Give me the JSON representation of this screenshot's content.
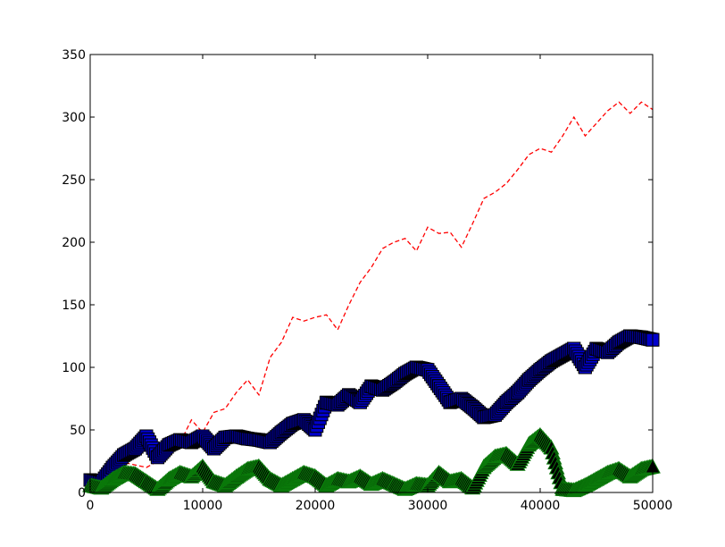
{
  "chart_data": {
    "type": "line",
    "title": "",
    "xlabel": "",
    "ylabel": "",
    "xlim": [
      0,
      50000
    ],
    "ylim": [
      0,
      350
    ],
    "xticks": [
      0,
      10000,
      20000,
      30000,
      40000,
      50000
    ],
    "yticks": [
      0,
      50,
      100,
      150,
      200,
      250,
      300,
      350
    ],
    "grid": false,
    "legend": "none",
    "series": [
      {
        "style": "dashed-line",
        "color": "#ff0000",
        "x": [
          0,
          1000,
          2000,
          3000,
          4000,
          5000,
          6000,
          7000,
          8000,
          9000,
          10000,
          11000,
          12000,
          13000,
          14000,
          15000,
          16000,
          17000,
          18000,
          19000,
          20000,
          21000,
          22000,
          23000,
          24000,
          25000,
          26000,
          27000,
          28000,
          29000,
          30000,
          31000,
          32000,
          33000,
          34000,
          35000,
          36000,
          37000,
          38000,
          39000,
          40000,
          41000,
          42000,
          43000,
          44000,
          45000,
          46000,
          47000,
          48000,
          49000,
          50000
        ],
        "y": [
          5,
          10,
          18,
          24,
          22,
          20,
          25,
          30,
          40,
          58,
          48,
          64,
          67,
          80,
          90,
          78,
          108,
          120,
          140,
          137,
          140,
          142,
          130,
          150,
          168,
          180,
          195,
          200,
          203,
          193,
          212,
          207,
          208,
          196,
          215,
          235,
          240,
          247,
          258,
          270,
          275,
          272,
          285,
          300,
          285,
          295,
          305,
          312,
          303,
          312,
          306
        ]
      },
      {
        "style": "square-markers",
        "color": "#0000cc",
        "x": [
          0,
          1000,
          2000,
          3000,
          4000,
          5000,
          6000,
          7000,
          8000,
          9000,
          10000,
          11000,
          12000,
          13000,
          14000,
          15000,
          16000,
          17000,
          18000,
          19000,
          20000,
          21000,
          22000,
          23000,
          24000,
          25000,
          26000,
          27000,
          28000,
          29000,
          30000,
          31000,
          32000,
          33000,
          34000,
          35000,
          36000,
          37000,
          38000,
          39000,
          40000,
          41000,
          42000,
          43000,
          44000,
          45000,
          46000,
          47000,
          48000,
          49000,
          50000
        ],
        "y": [
          10,
          8,
          20,
          30,
          35,
          45,
          28,
          38,
          42,
          40,
          45,
          35,
          44,
          45,
          43,
          42,
          40,
          48,
          55,
          58,
          50,
          72,
          70,
          78,
          72,
          85,
          82,
          88,
          95,
          100,
          98,
          85,
          72,
          75,
          68,
          60,
          62,
          72,
          80,
          90,
          98,
          105,
          110,
          115,
          100,
          115,
          112,
          120,
          125,
          124,
          122
        ]
      },
      {
        "style": "triangle-markers",
        "color": "#000000",
        "edge_color": "#0a7a0a",
        "x": [
          0,
          1000,
          2000,
          3000,
          4000,
          5000,
          6000,
          7000,
          8000,
          9000,
          10000,
          11000,
          12000,
          13000,
          14000,
          15000,
          16000,
          17000,
          18000,
          19000,
          20000,
          21000,
          22000,
          23000,
          24000,
          25000,
          26000,
          27000,
          28000,
          29000,
          30000,
          31000,
          32000,
          33000,
          34000,
          35000,
          36000,
          37000,
          38000,
          39000,
          40000,
          41000,
          42000,
          43000,
          44000,
          45000,
          46000,
          47000,
          48000,
          49000,
          50000
        ],
        "y": [
          5,
          3,
          10,
          15,
          14,
          8,
          2,
          10,
          15,
          12,
          20,
          8,
          5,
          12,
          18,
          20,
          10,
          5,
          10,
          15,
          12,
          5,
          10,
          8,
          12,
          6,
          10,
          6,
          2,
          6,
          5,
          15,
          8,
          10,
          3,
          20,
          28,
          30,
          22,
          38,
          45,
          35,
          2,
          1,
          5,
          10,
          15,
          18,
          12,
          18,
          20
        ]
      }
    ]
  }
}
